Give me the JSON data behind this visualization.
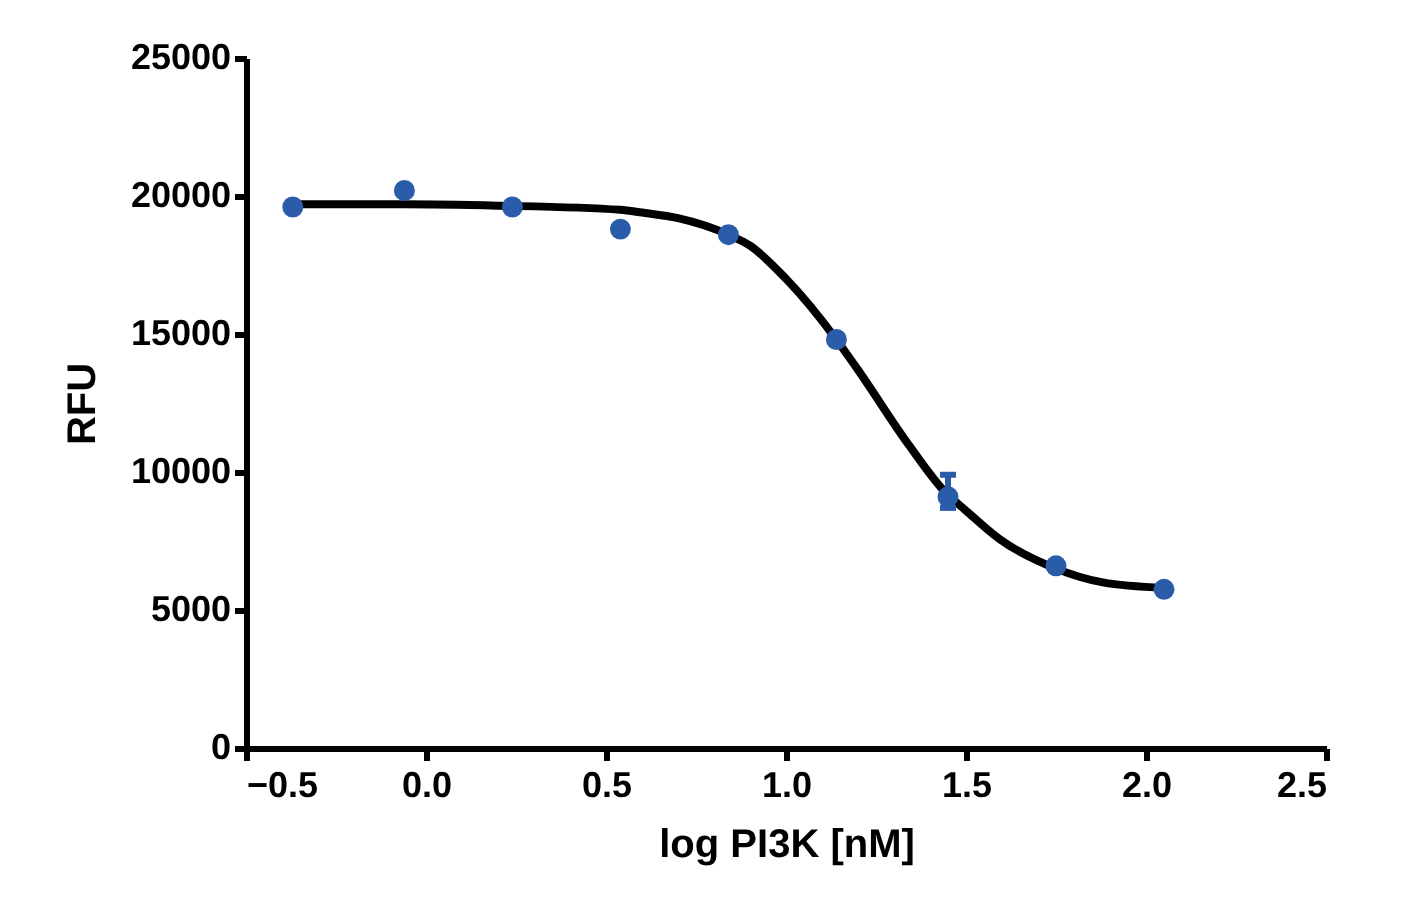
{
  "chart_data": {
    "type": "scatter",
    "xlabel": "log PI3K [nM]",
    "ylabel": "RFU",
    "xlim": [
      -0.5,
      2.5
    ],
    "xticks": [
      -0.5,
      {
        "value": 0,
        "label": "0.0"
      },
      0.5,
      {
        "value": 1,
        "label": "1.0"
      },
      1.5,
      {
        "value": 2,
        "label": "2.0"
      },
      2.5
    ],
    "ylim": [
      0,
      25000
    ],
    "yticks": [
      0,
      5000,
      10000,
      15000,
      20000,
      25000
    ],
    "grid": false,
    "marker": "circle",
    "series": [
      {
        "type": "line",
        "color": "#000000",
        "line_style": "solid",
        "marker": "none",
        "x": [
          -0.37,
          -0.06,
          0.2,
          0.54,
          0.6,
          0.7,
          0.84,
          0.9,
          1.0,
          1.14,
          1.2,
          1.34,
          1.44,
          1.5,
          1.59,
          1.75,
          1.88,
          2.05
        ],
        "values": [
          19700,
          19700,
          19650,
          19500,
          19400,
          19200,
          18600,
          18200,
          17000,
          14800,
          13700,
          11000,
          9300,
          8600,
          7600,
          6500,
          6000,
          5800
        ]
      },
      {
        "color": "#2a5caa",
        "x": [
          -0.37,
          -0.06,
          0.24,
          0.54,
          0.84,
          1.14,
          1.45,
          1.75,
          2.05
        ],
        "values": [
          19600,
          20200,
          19600,
          18800,
          18600,
          14800,
          9100,
          6600,
          5750
        ],
        "errors": [
          null,
          null,
          null,
          null,
          null,
          null,
          [
            8700,
            9900
          ],
          null,
          null
        ]
      }
    ]
  }
}
